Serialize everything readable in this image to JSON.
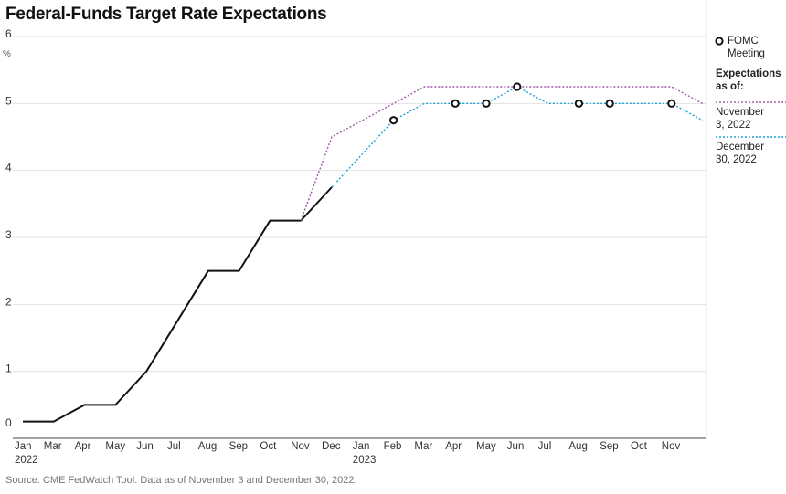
{
  "chart_data": {
    "type": "line",
    "title": "Federal-Funds Target Rate Expectations",
    "y_unit": "%",
    "source": "Source: CME FedWatch Tool. Data as of November 3 and December 30, 2022.",
    "categories": [
      "Jan 2022",
      "Mar",
      "Apr",
      "May",
      "Jun",
      "Jul",
      "Aug",
      "Sep",
      "Oct",
      "Nov",
      "Dec",
      "Jan 2023",
      "Feb",
      "Mar",
      "Apr",
      "May",
      "Jun",
      "Jul",
      "Aug",
      "Sep",
      "Oct",
      "Nov",
      null
    ],
    "legend_title": "Expectations as of:",
    "series": [
      {
        "color": "#111111",
        "style": "solid",
        "values": [
          0.25,
          0.25,
          0.5,
          0.5,
          1,
          1.75,
          2.5,
          2.5,
          3.25,
          3.25,
          3.75,
          null,
          null,
          null,
          null,
          null,
          null,
          null,
          null,
          null,
          null,
          null,
          null
        ]
      },
      {
        "name": "November 3, 2022",
        "color": "#a05aa8",
        "style": "dotted",
        "values": [
          null,
          null,
          null,
          null,
          null,
          null,
          null,
          null,
          null,
          3.25,
          4.5,
          4.75,
          5,
          5.25,
          5.25,
          5.25,
          5.25,
          5.25,
          5.25,
          5.25,
          5.25,
          5.25,
          5
        ]
      },
      {
        "name": "December 30, 2022",
        "color": "#1fa3d6",
        "style": "dotted",
        "values": [
          null,
          null,
          null,
          null,
          null,
          null,
          null,
          null,
          null,
          null,
          3.75,
          4.25,
          4.75,
          5,
          5,
          5,
          5.25,
          5,
          5,
          5,
          5,
          5,
          4.75
        ]
      },
      {
        "name": "FOMC Meeting",
        "color": "#111111",
        "style": "markers",
        "values": [
          null,
          null,
          null,
          null,
          null,
          null,
          null,
          null,
          null,
          null,
          null,
          null,
          4.75,
          null,
          5,
          5,
          5.25,
          null,
          5,
          5,
          null,
          5,
          null
        ]
      }
    ],
    "ylim": [
      0,
      6
    ],
    "yticks": [
      0,
      1,
      2,
      3,
      4,
      5,
      6
    ],
    "grid": true
  }
}
